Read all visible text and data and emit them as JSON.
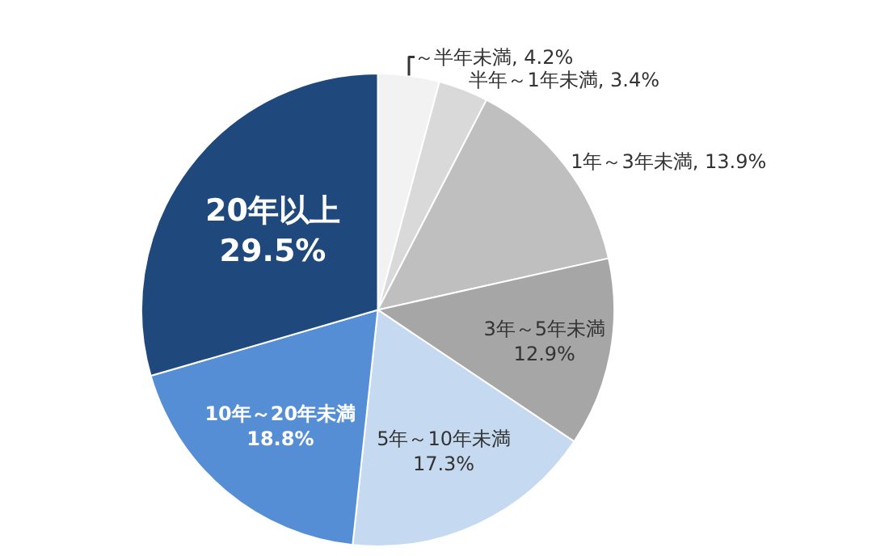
{
  "chart_data": {
    "type": "pie",
    "categories": [
      "～半年未満",
      "半年～1年未満",
      "1年～3年未満",
      "3年～5年未満",
      "5年～10年未満",
      "10年～20年未満",
      "20年以上"
    ],
    "values": [
      4.2,
      3.4,
      13.9,
      12.9,
      17.3,
      18.8,
      29.5
    ],
    "colors": [
      "#f2f2f2",
      "#d9d9d9",
      "#bfbfbf",
      "#a6a6a6",
      "#c5d9f1",
      "#558ed5",
      "#1f497d"
    ],
    "value_labels": [
      "4.2%",
      "3.4%",
      "13.9%",
      "12.9%",
      "17.3%",
      "18.8%",
      "29.5%"
    ],
    "legend": false
  }
}
